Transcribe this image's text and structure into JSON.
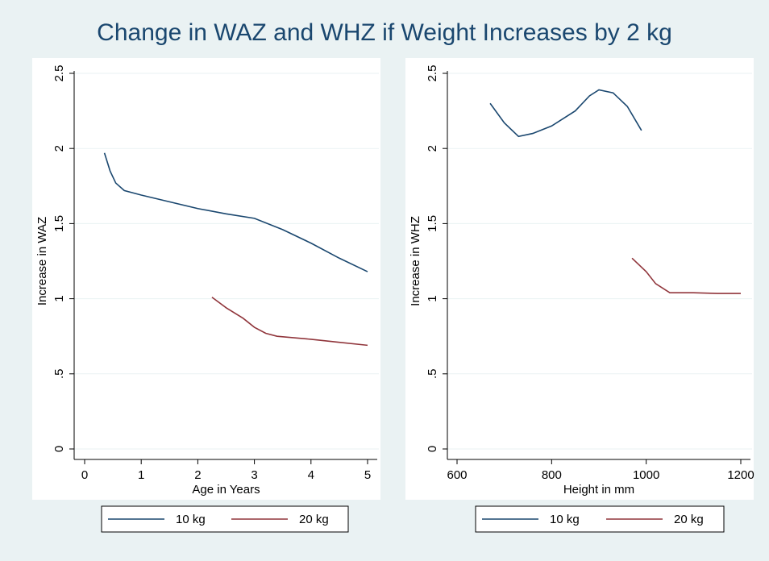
{
  "title": "Change in WAZ and WHZ if Weight Increases by 2 kg",
  "chart_data": [
    {
      "type": "line",
      "xlabel": "Age in Years",
      "ylabel": "Increase in WAZ",
      "xlim": [
        0,
        5
      ],
      "xticks": [
        0,
        1,
        2,
        3,
        4,
        5
      ],
      "ylim": [
        0,
        2.5
      ],
      "yticks": [
        0,
        {
          "value": 0.5,
          "label": ".5"
        },
        1,
        1.5,
        2,
        2.5
      ],
      "grid": true,
      "series": [
        {
          "name": "10 kg",
          "color": "#1a476f",
          "x": [
            0.35,
            0.45,
            0.55,
            0.7,
            1,
            1.5,
            2,
            2.5,
            3,
            3.5,
            4,
            4.5,
            5
          ],
          "values": [
            1.97,
            1.85,
            1.77,
            1.72,
            1.69,
            1.645,
            1.6,
            1.565,
            1.535,
            1.46,
            1.37,
            1.27,
            1.18
          ]
        },
        {
          "name": "20 kg",
          "color": "#90353b",
          "x": [
            2.25,
            2.5,
            2.8,
            3,
            3.2,
            3.4,
            4,
            4.5,
            5
          ],
          "values": [
            1.01,
            0.94,
            0.87,
            0.81,
            0.77,
            0.75,
            0.73,
            0.71,
            0.69
          ]
        }
      ]
    },
    {
      "type": "line",
      "xlabel": "Height in mm",
      "ylabel": "Increase in WHZ",
      "xlim": [
        600,
        1200
      ],
      "xticks": [
        600,
        800,
        1000,
        1200
      ],
      "ylim": [
        0,
        2.5
      ],
      "yticks": [
        0,
        {
          "value": 0.5,
          "label": ".5"
        },
        1,
        1.5,
        2,
        2.5
      ],
      "grid": true,
      "series": [
        {
          "name": "10 kg",
          "color": "#1a476f",
          "x": [
            670,
            700,
            730,
            760,
            800,
            850,
            880,
            900,
            930,
            960,
            990
          ],
          "values": [
            2.3,
            2.17,
            2.08,
            2.1,
            2.15,
            2.25,
            2.35,
            2.39,
            2.37,
            2.28,
            2.12
          ]
        },
        {
          "name": "20 kg",
          "color": "#90353b",
          "x": [
            970,
            1000,
            1020,
            1050,
            1100,
            1150,
            1200
          ],
          "values": [
            1.27,
            1.18,
            1.1,
            1.04,
            1.04,
            1.035,
            1.035
          ]
        }
      ]
    }
  ]
}
